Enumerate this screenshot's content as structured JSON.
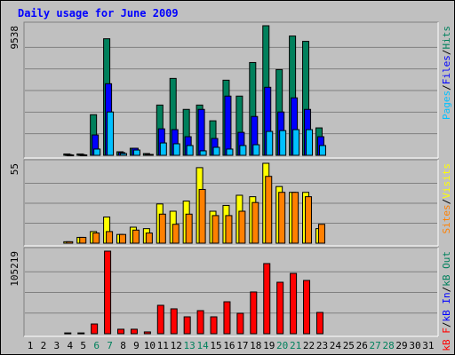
{
  "chart_data": {
    "type": "bar",
    "title": "Daily usage for June 2009",
    "categories": [
      "1",
      "2",
      "3",
      "4",
      "5",
      "6",
      "7",
      "8",
      "9",
      "10",
      "11",
      "12",
      "13",
      "14",
      "15",
      "16",
      "17",
      "18",
      "19",
      "20",
      "21",
      "22",
      "23",
      "24",
      "25",
      "26",
      "27",
      "28",
      "29",
      "30",
      "31"
    ],
    "category_colors": [
      "#000000",
      "#000000",
      "#000000",
      "#000000",
      "#000000",
      "#00805c",
      "#00805c",
      "#000000",
      "#000000",
      "#000000",
      "#000000",
      "#000000",
      "#00805c",
      "#00805c",
      "#000000",
      "#000000",
      "#000000",
      "#000000",
      "#000000",
      "#00805c",
      "#00805c",
      "#000000",
      "#000000",
      "#000000",
      "#000000",
      "#000000",
      "#00805c",
      "#00805c",
      "#000000",
      "#000000",
      "#000000"
    ],
    "panels": [
      {
        "ylim": [
          0,
          9538
        ],
        "yticks": [
          9538
        ],
        "series": [
          {
            "name": "Pages",
            "color": "#00c0ff",
            "values": [
              0,
              0,
              0,
              30,
              30,
              460,
              3190,
              130,
              390,
              65,
              910,
              850,
              720,
              330,
              590,
              460,
              720,
              780,
              1760,
              1820,
              1890,
              1890,
              720,
              0,
              0,
              0,
              0,
              0,
              0,
              0,
              0
            ]
          },
          {
            "name": "Files",
            "color": "#0000ff",
            "values": [
              0,
              0,
              0,
              50,
              50,
              1500,
              5270,
              200,
              520,
              65,
              1950,
              1890,
              1370,
              3380,
              1240,
              4360,
              1690,
              2860,
              5010,
              3190,
              4230,
              3380,
              1370,
              0,
              0,
              0,
              0,
              0,
              0,
              0,
              0
            ]
          },
          {
            "name": "Hits",
            "color": "#00805c",
            "values": [
              0,
              0,
              0,
              100,
              100,
              2990,
              8580,
              260,
              520,
              130,
              3700,
              5660,
              3380,
              3700,
              2540,
              5530,
              4360,
              6830,
              9538,
              6310,
              8780,
              8390,
              2020,
              0,
              0,
              0,
              0,
              0,
              0,
              0,
              0
            ]
          }
        ]
      },
      {
        "ylim": [
          0,
          55
        ],
        "yticks": [
          55
        ],
        "series": [
          {
            "name": "Sites",
            "color": "#ff8000",
            "values": [
              0,
              0,
              0,
              1,
              4,
              7,
              8,
              6,
              9,
              7,
              20,
              13,
              20,
              37,
              19,
              19,
              22,
              28,
              46,
              35,
              35,
              32,
              13,
              0,
              0,
              0,
              0,
              0,
              0,
              0,
              0
            ]
          },
          {
            "name": "Visits",
            "color": "#ffff00",
            "values": [
              0,
              0,
              0,
              1,
              4,
              8,
              18,
              6,
              11,
              10,
              27,
              22,
              29,
              52,
              22,
              26,
              33,
              32,
              55,
              39,
              35,
              35,
              10,
              0,
              0,
              0,
              0,
              0,
              0,
              0,
              0
            ]
          }
        ]
      },
      {
        "ylim": [
          0,
          105219
        ],
        "yticks": [
          105219
        ],
        "series": [
          {
            "name": "kB F",
            "color": "#ff0000",
            "values": [
              0,
              0,
              0,
              1000,
              1000,
              12400,
              105219,
              5700,
              5700,
              2300,
              36200,
              31700,
              21500,
              29400,
              21500,
              40700,
              26000,
              53200,
              89400,
              65600,
              76900,
              67900,
              27100,
              0,
              0,
              0,
              0,
              0,
              0,
              0,
              0
            ]
          },
          {
            "name": "kB In",
            "color": "#0000ff"
          },
          {
            "name": "kB Out",
            "color": "#00805c"
          }
        ]
      }
    ]
  }
}
